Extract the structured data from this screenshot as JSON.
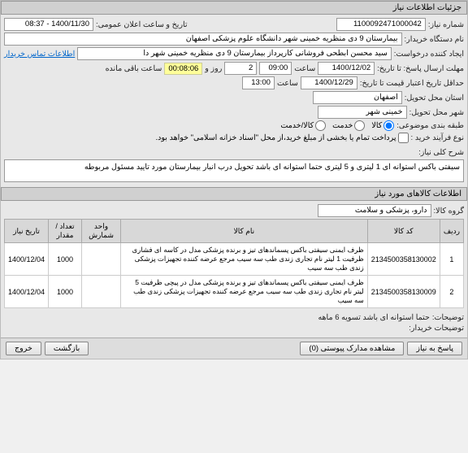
{
  "panel_title": "جزئیات اطلاعات نیاز",
  "form": {
    "need_no_label": "شماره نیاز:",
    "need_no": "1100092471000042",
    "pub_date_label": "تاریخ و ساعت اعلان عمومی:",
    "pub_date": "1400/11/30 - 08:37",
    "buyer_label": "نام دستگاه خریدار:",
    "buyer": "بیمارستان 9 دی منظریه خمینی شهر دانشگاه علوم پزشکی اصفهان",
    "creator_label": "ایجاد کننده درخواست:",
    "creator": "سید محسن ابطحی فروشانی کارپرداز بیمارستان 9 دی منظریه خمینی شهر دا",
    "contact_link": "اطلاعات تماس خریدار",
    "deadline_label": "مهلت ارسال پاسخ: تا تاریخ:",
    "deadline_date": "1400/12/02",
    "time_label": "ساعت",
    "deadline_time": "09:00",
    "day_and": "روز و",
    "days": "2",
    "timer": "00:08:06",
    "remain": "ساعت باقی مانده",
    "min_valid_label": "حداقل تاریخ اعتبار قیمت تا تاریخ:",
    "min_valid_date": "1400/12/29",
    "min_valid_time": "13:00",
    "province_label": "استان محل تحویل:",
    "province": "اصفهان",
    "city_label": "شهر محل تحویل:",
    "city": "خمینی شهر",
    "pkg_label": "طبقه بندی موضوعی:",
    "pkg_goods": "کالا",
    "pkg_service": "خدمت",
    "pkg_both": "کالا/خدمت",
    "proc_label": "نوع فرآیند خرید :",
    "proc_note": "پرداخت تمام یا بخشی از مبلغ خرید،از محل \"اسناد خزانه اسلامی\" خواهد بود.",
    "desc_label": "شرح کلی نیاز:",
    "desc": "سیفتی باکس استوانه ای 1 لیتری و 5 لیتری    حتما استوانه ای باشد    تحویل درب انبار بیمارستان    مورد تایید مسئول مربوطه"
  },
  "goods_section": "اطلاعات کالاهای مورد نیاز",
  "group_label": "گروه کالا:",
  "group": "دارو، پزشکی و سلامت",
  "table": {
    "headers": {
      "row": "ردیف",
      "code": "کد کالا",
      "name": "نام کالا",
      "unit": "واحد شمارش",
      "qty": "تعداد / مقدار",
      "date": "تاریخ نیاز"
    },
    "rows": [
      {
        "idx": "1",
        "code": "2134500358130002",
        "name": "ظرف ایمنی سیفتی باکس پسماندهای تیز و برنده پزشکی مدل در کاسه ای فشاری ظرفیت 1 لیتر نام تجاری زندی طب سه سیب مرجع عرضه کننده تجهیزات پزشکی زندی طب سه سیب",
        "qty": "1000",
        "date": "1400/12/04"
      },
      {
        "idx": "2",
        "code": "2134500358130009",
        "name": "ظرف ایمنی سیفتی باکس پسماندهای تیز و برنده پزشکی مدل در پیچی ظرفیت 5 لیتر نام تجاری زندی طب سه سیب مرجع عرضه کننده تجهیزات پزشکی زندی طب سه سیب",
        "qty": "1000",
        "date": "1400/12/04"
      }
    ]
  },
  "extra_label": "توضیحات:",
  "extra": "حتما استوانه ای باشد    تسویه 6 ماهه",
  "buyer_note_label": "توضیحات خریدار:",
  "buttons": {
    "respond": "پاسخ به نیاز",
    "docs": "مشاهده مدارک پیوستی (0)",
    "back": "بازگشت",
    "exit": "خروج"
  }
}
